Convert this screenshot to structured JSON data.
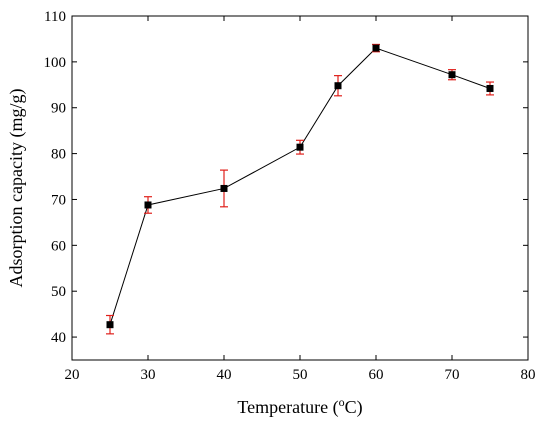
{
  "chart_data": {
    "type": "scatter",
    "title": "",
    "xlabel_main": "Temperature (",
    "xlabel_sup": "o",
    "xlabel_unit": "C)",
    "ylabel": "Adsorption capacity (mg/g)",
    "xlim": [
      20,
      80
    ],
    "ylim": [
      35,
      110
    ],
    "xticks": [
      20,
      30,
      40,
      50,
      60,
      70,
      80
    ],
    "yticks": [
      40,
      50,
      60,
      70,
      80,
      90,
      100,
      110
    ],
    "grid": false,
    "legend": "none",
    "series": [
      {
        "x": [
          25,
          30,
          40,
          50,
          55,
          60,
          70,
          75
        ],
        "y": [
          42.7,
          68.8,
          72.4,
          81.4,
          94.8,
          103.0,
          97.2,
          94.2
        ],
        "error": [
          2.0,
          1.8,
          4.0,
          1.5,
          2.2,
          0.8,
          1.1,
          1.4
        ],
        "marker": "square",
        "line_color": "#000000",
        "marker_color": "#000000",
        "error_color": "#e0201b"
      }
    ]
  }
}
